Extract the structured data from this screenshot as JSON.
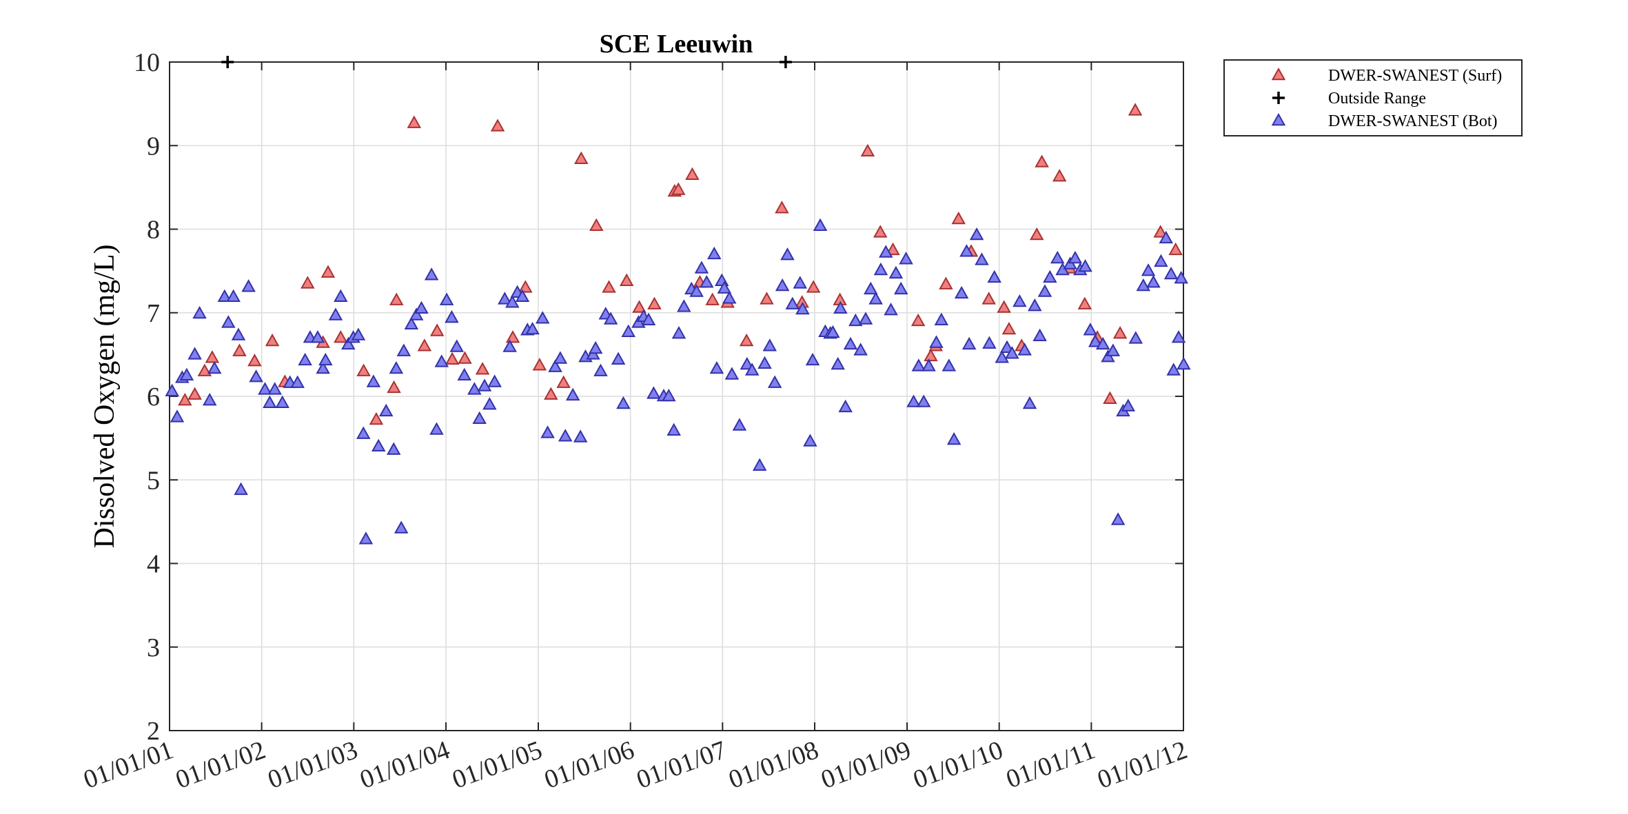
{
  "chart_data": {
    "type": "scatter",
    "title": "SCE Leeuwin",
    "xlabel": "",
    "ylabel": "Dissolved Oxygen (mg/L)",
    "xlim": [
      "2001-01-01",
      "2012-01-01"
    ],
    "ylim": [
      2,
      10
    ],
    "x_tick_labels": [
      "01/01/01",
      "01/01/02",
      "01/01/03",
      "01/01/04",
      "01/01/05",
      "01/01/06",
      "01/01/07",
      "01/01/08",
      "01/01/09",
      "01/01/10",
      "01/01/11",
      "01/01/12"
    ],
    "y_ticks": [
      2,
      3,
      4,
      5,
      6,
      7,
      8,
      9,
      10
    ],
    "grid": true,
    "legend_position": "outside-top-right",
    "series": [
      {
        "name": "DWER-SWANEST (Surf)",
        "marker": "triangle",
        "color": "#f08080",
        "edge_color": "#a83232",
        "points": [
          [
            "2001-03-03",
            5.95
          ],
          [
            "2001-04-11",
            6.02
          ],
          [
            "2001-05-20",
            6.3
          ],
          [
            "2001-06-19",
            6.46
          ],
          [
            "2001-10-05",
            6.54
          ],
          [
            "2001-12-04",
            6.42
          ],
          [
            "2002-02-12",
            6.66
          ],
          [
            "2002-04-03",
            6.17
          ],
          [
            "2002-07-02",
            7.35
          ],
          [
            "2002-09-01",
            6.64
          ],
          [
            "2002-09-21",
            7.48
          ],
          [
            "2002-11-10",
            6.7
          ],
          [
            "2003-02-09",
            6.3
          ],
          [
            "2003-03-31",
            5.72
          ],
          [
            "2003-06-09",
            6.1
          ],
          [
            "2003-06-19",
            7.15
          ],
          [
            "2003-08-28",
            9.27
          ],
          [
            "2003-10-08",
            6.6
          ],
          [
            "2003-11-27",
            6.78
          ],
          [
            "2004-01-26",
            6.44
          ],
          [
            "2004-03-16",
            6.45
          ],
          [
            "2004-05-25",
            6.32
          ],
          [
            "2004-07-24",
            9.23
          ],
          [
            "2004-09-22",
            6.7
          ],
          [
            "2004-11-11",
            7.3
          ],
          [
            "2005-01-06",
            6.37
          ],
          [
            "2005-02-20",
            6.02
          ],
          [
            "2005-04-11",
            6.16
          ],
          [
            "2005-06-20",
            8.84
          ],
          [
            "2005-08-19",
            8.04
          ],
          [
            "2005-10-08",
            7.3
          ],
          [
            "2005-12-17",
            7.38
          ],
          [
            "2006-02-05",
            7.06
          ],
          [
            "2006-04-06",
            7.1
          ],
          [
            "2006-06-25",
            8.45
          ],
          [
            "2006-07-10",
            8.47
          ],
          [
            "2006-09-03",
            8.65
          ],
          [
            "2006-10-03",
            7.36
          ],
          [
            "2006-11-22",
            7.15
          ],
          [
            "2007-01-21",
            7.12
          ],
          [
            "2007-04-06",
            6.66
          ],
          [
            "2007-06-25",
            7.16
          ],
          [
            "2007-08-24",
            8.25
          ],
          [
            "2007-11-12",
            7.12
          ],
          [
            "2007-12-27",
            7.3
          ],
          [
            "2008-04-10",
            7.15
          ],
          [
            "2008-07-29",
            8.93
          ],
          [
            "2008-09-17",
            7.96
          ],
          [
            "2008-11-06",
            7.75
          ],
          [
            "2009-02-14",
            6.9
          ],
          [
            "2009-04-05",
            6.48
          ],
          [
            "2009-04-25",
            6.6
          ],
          [
            "2009-06-04",
            7.34
          ],
          [
            "2009-07-24",
            8.12
          ],
          [
            "2009-09-12",
            7.73
          ],
          [
            "2009-11-21",
            7.16
          ],
          [
            "2010-01-20",
            7.06
          ],
          [
            "2010-02-09",
            6.8
          ],
          [
            "2010-03-31",
            6.6
          ],
          [
            "2010-05-30",
            7.93
          ],
          [
            "2010-06-19",
            8.8
          ],
          [
            "2010-08-28",
            8.63
          ],
          [
            "2010-10-07",
            7.53
          ],
          [
            "2010-12-06",
            7.1
          ],
          [
            "2011-01-25",
            6.7
          ],
          [
            "2011-03-16",
            5.97
          ],
          [
            "2011-04-25",
            6.75
          ],
          [
            "2011-06-24",
            9.42
          ],
          [
            "2011-10-02",
            7.96
          ],
          [
            "2011-12-01",
            7.75
          ]
        ]
      },
      {
        "name": "Outside Range",
        "marker": "plus",
        "color": "#000000",
        "points": [
          [
            "2001-08-19",
            10
          ],
          [
            "2007-09-08",
            10
          ]
        ]
      },
      {
        "name": "DWER-SWANEST (Bot)",
        "marker": "triangle",
        "color": "#8080f0",
        "edge_color": "#3232a8",
        "points": [
          [
            "2001-01-11",
            6.06
          ],
          [
            "2001-01-31",
            5.75
          ],
          [
            "2001-02-20",
            6.22
          ],
          [
            "2001-03-10",
            6.25
          ],
          [
            "2001-04-11",
            6.5
          ],
          [
            "2001-04-30",
            6.99
          ],
          [
            "2001-06-09",
            5.95
          ],
          [
            "2001-06-28",
            6.33
          ],
          [
            "2001-08-07",
            7.19
          ],
          [
            "2001-08-22",
            6.88
          ],
          [
            "2001-09-11",
            7.19
          ],
          [
            "2001-10-01",
            6.73
          ],
          [
            "2001-10-11",
            4.88
          ],
          [
            "2001-11-10",
            7.31
          ],
          [
            "2001-12-10",
            6.23
          ],
          [
            "2002-01-14",
            6.08
          ],
          [
            "2002-02-02",
            5.92
          ],
          [
            "2002-02-22",
            6.08
          ],
          [
            "2002-03-24",
            5.92
          ],
          [
            "2002-04-23",
            6.16
          ],
          [
            "2002-05-23",
            6.16
          ],
          [
            "2002-06-22",
            6.43
          ],
          [
            "2002-07-12",
            6.7
          ],
          [
            "2002-08-11",
            6.7
          ],
          [
            "2002-09-01",
            6.33
          ],
          [
            "2002-09-11",
            6.43
          ],
          [
            "2002-10-21",
            6.97
          ],
          [
            "2002-11-10",
            7.19
          ],
          [
            "2002-12-10",
            6.62
          ],
          [
            "2002-12-30",
            6.7
          ],
          [
            "2003-01-19",
            6.73
          ],
          [
            "2003-02-08",
            5.55
          ],
          [
            "2003-02-18",
            4.29
          ],
          [
            "2003-03-20",
            6.17
          ],
          [
            "2003-04-09",
            5.4
          ],
          [
            "2003-05-09",
            5.82
          ],
          [
            "2003-06-08",
            5.36
          ],
          [
            "2003-06-18",
            6.33
          ],
          [
            "2003-07-08",
            4.42
          ],
          [
            "2003-07-18",
            6.54
          ],
          [
            "2003-08-17",
            6.86
          ],
          [
            "2003-09-06",
            6.97
          ],
          [
            "2003-09-26",
            7.05
          ],
          [
            "2003-11-05",
            7.45
          ],
          [
            "2003-11-25",
            5.6
          ],
          [
            "2003-12-15",
            6.41
          ],
          [
            "2004-01-04",
            7.15
          ],
          [
            "2004-01-24",
            6.94
          ],
          [
            "2004-02-13",
            6.59
          ],
          [
            "2004-03-14",
            6.25
          ],
          [
            "2004-04-23",
            6.08
          ],
          [
            "2004-05-13",
            5.73
          ],
          [
            "2004-06-02",
            6.12
          ],
          [
            "2004-06-22",
            5.9
          ],
          [
            "2004-07-12",
            6.17
          ],
          [
            "2004-08-21",
            7.16
          ],
          [
            "2004-09-10",
            6.59
          ],
          [
            "2004-09-20",
            7.12
          ],
          [
            "2004-10-10",
            7.24
          ],
          [
            "2004-10-30",
            7.19
          ],
          [
            "2004-11-19",
            6.79
          ],
          [
            "2004-12-09",
            6.8
          ],
          [
            "2005-01-18",
            6.93
          ],
          [
            "2005-02-07",
            5.56
          ],
          [
            "2005-03-09",
            6.35
          ],
          [
            "2005-03-29",
            6.45
          ],
          [
            "2005-04-18",
            5.52
          ],
          [
            "2005-05-18",
            6.01
          ],
          [
            "2005-06-17",
            5.51
          ],
          [
            "2005-07-07",
            6.47
          ],
          [
            "2005-08-06",
            6.5
          ],
          [
            "2005-08-16",
            6.57
          ],
          [
            "2005-09-05",
            6.3
          ],
          [
            "2005-09-25",
            6.98
          ],
          [
            "2005-10-15",
            6.92
          ],
          [
            "2005-11-14",
            6.44
          ],
          [
            "2005-12-04",
            5.91
          ],
          [
            "2005-12-24",
            6.77
          ],
          [
            "2006-02-02",
            6.88
          ],
          [
            "2006-02-22",
            6.95
          ],
          [
            "2006-03-14",
            6.91
          ],
          [
            "2006-04-03",
            6.03
          ],
          [
            "2006-05-13",
            6.0
          ],
          [
            "2006-06-02",
            6.0
          ],
          [
            "2006-06-22",
            5.59
          ],
          [
            "2006-07-12",
            6.75
          ],
          [
            "2006-08-01",
            7.07
          ],
          [
            "2006-08-31",
            7.28
          ],
          [
            "2006-09-20",
            7.25
          ],
          [
            "2006-10-10",
            7.53
          ],
          [
            "2006-10-30",
            7.36
          ],
          [
            "2006-11-29",
            7.7
          ],
          [
            "2006-12-09",
            6.33
          ],
          [
            "2006-12-29",
            7.38
          ],
          [
            "2007-01-08",
            7.29
          ],
          [
            "2007-01-28",
            7.17
          ],
          [
            "2007-02-07",
            6.26
          ],
          [
            "2007-03-09",
            5.65
          ],
          [
            "2007-04-08",
            6.38
          ],
          [
            "2007-04-28",
            6.31
          ],
          [
            "2007-05-28",
            5.17
          ],
          [
            "2007-06-17",
            6.39
          ],
          [
            "2007-07-07",
            6.6
          ],
          [
            "2007-07-27",
            6.16
          ],
          [
            "2007-08-26",
            7.32
          ],
          [
            "2007-09-15",
            7.69
          ],
          [
            "2007-10-05",
            7.1
          ],
          [
            "2007-11-04",
            7.35
          ],
          [
            "2007-11-14",
            7.04
          ],
          [
            "2007-12-14",
            5.46
          ],
          [
            "2007-12-24",
            6.43
          ],
          [
            "2008-01-23",
            8.04
          ],
          [
            "2008-02-12",
            6.77
          ],
          [
            "2008-03-03",
            6.75
          ],
          [
            "2008-03-13",
            6.76
          ],
          [
            "2008-04-02",
            6.38
          ],
          [
            "2008-04-12",
            7.05
          ],
          [
            "2008-05-02",
            5.87
          ],
          [
            "2008-05-22",
            6.62
          ],
          [
            "2008-06-11",
            6.9
          ],
          [
            "2008-07-01",
            6.55
          ],
          [
            "2008-07-21",
            6.92
          ],
          [
            "2008-08-10",
            7.28
          ],
          [
            "2008-08-30",
            7.16
          ],
          [
            "2008-09-19",
            7.51
          ],
          [
            "2008-10-09",
            7.72
          ],
          [
            "2008-10-29",
            7.03
          ],
          [
            "2008-11-18",
            7.47
          ],
          [
            "2008-12-08",
            7.28
          ],
          [
            "2008-12-28",
            7.64
          ],
          [
            "2009-01-27",
            5.93
          ],
          [
            "2009-02-16",
            6.36
          ],
          [
            "2009-03-08",
            5.93
          ],
          [
            "2009-03-28",
            6.36
          ],
          [
            "2009-04-27",
            6.64
          ],
          [
            "2009-05-17",
            6.91
          ],
          [
            "2009-06-16",
            6.36
          ],
          [
            "2009-07-06",
            5.48
          ],
          [
            "2009-08-05",
            7.23
          ],
          [
            "2009-08-25",
            7.73
          ],
          [
            "2009-09-04",
            6.62
          ],
          [
            "2009-10-04",
            7.93
          ],
          [
            "2009-10-24",
            7.63
          ],
          [
            "2009-11-23",
            6.63
          ],
          [
            "2009-12-13",
            7.42
          ],
          [
            "2010-01-12",
            6.46
          ],
          [
            "2010-02-01",
            6.58
          ],
          [
            "2010-02-21",
            6.51
          ],
          [
            "2010-03-23",
            7.13
          ],
          [
            "2010-04-12",
            6.55
          ],
          [
            "2010-05-02",
            5.91
          ],
          [
            "2010-05-22",
            7.08
          ],
          [
            "2010-06-11",
            6.72
          ],
          [
            "2010-07-01",
            7.25
          ],
          [
            "2010-07-21",
            7.42
          ],
          [
            "2010-08-20",
            7.65
          ],
          [
            "2010-09-09",
            7.51
          ],
          [
            "2010-10-09",
            7.58
          ],
          [
            "2010-10-29",
            7.65
          ],
          [
            "2010-11-18",
            7.51
          ],
          [
            "2010-12-08",
            7.55
          ],
          [
            "2010-12-28",
            6.79
          ],
          [
            "2011-01-17",
            6.65
          ],
          [
            "2011-02-16",
            6.62
          ],
          [
            "2011-03-08",
            6.47
          ],
          [
            "2011-03-28",
            6.54
          ],
          [
            "2011-04-17",
            4.52
          ],
          [
            "2011-05-07",
            5.82
          ],
          [
            "2011-05-27",
            5.88
          ],
          [
            "2011-06-26",
            6.69
          ],
          [
            "2011-07-26",
            7.32
          ],
          [
            "2011-08-15",
            7.5
          ],
          [
            "2011-09-04",
            7.36
          ],
          [
            "2011-10-04",
            7.61
          ],
          [
            "2011-10-24",
            7.89
          ],
          [
            "2011-11-13",
            7.46
          ],
          [
            "2011-11-23",
            6.31
          ],
          [
            "2011-12-13",
            6.7
          ],
          [
            "2011-12-23",
            7.41
          ],
          [
            "2012-01-02",
            6.38
          ]
        ]
      }
    ]
  },
  "legend": {
    "entries": [
      {
        "label": "DWER-SWANEST (Surf)",
        "marker": "triangle",
        "color": "#f08080",
        "edge_color": "#a83232"
      },
      {
        "label": "Outside Range",
        "marker": "plus",
        "color": "#000000"
      },
      {
        "label": "DWER-SWANEST (Bot)",
        "marker": "triangle",
        "color": "#8080f0",
        "edge_color": "#3232a8"
      }
    ]
  }
}
